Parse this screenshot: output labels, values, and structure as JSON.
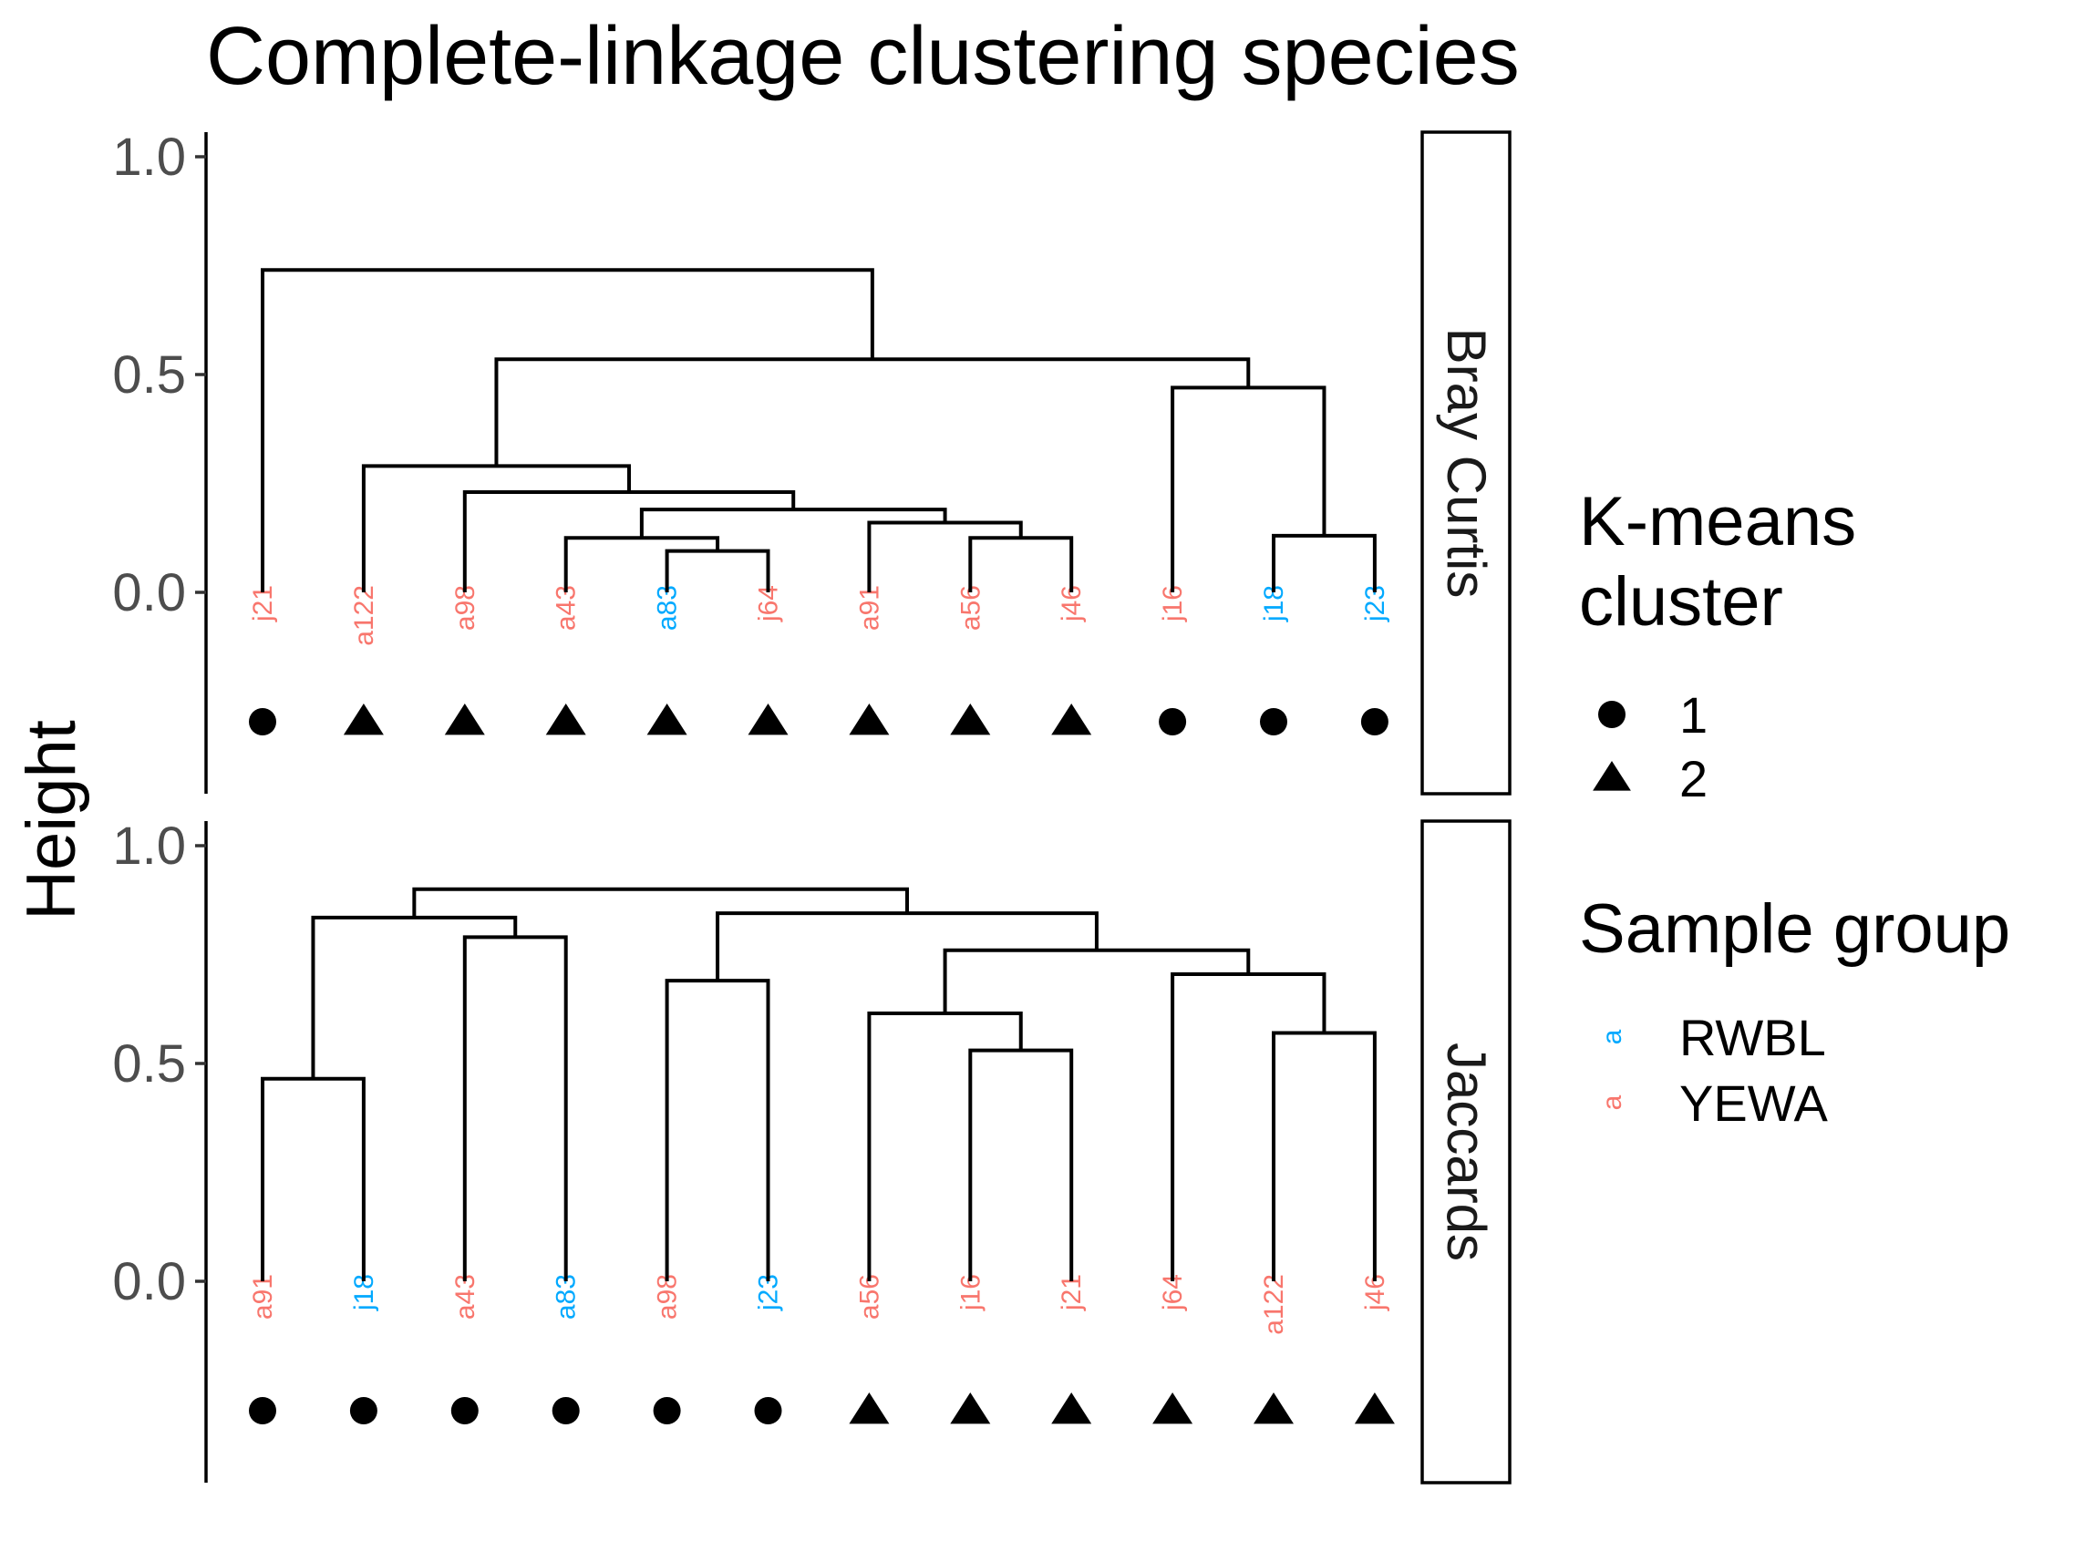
{
  "chart_data": {
    "type": "dendrogram",
    "title": "Complete-linkage clustering species",
    "ylabel": "Height",
    "ylim": [
      -0.3,
      1.05
    ],
    "yticks": [
      "0.0",
      "0.5",
      "1.0"
    ],
    "colors": {
      "RWBL": "#00A9FF",
      "YEWA": "#F8766D"
    },
    "legend": {
      "shape_title": "K-means\ncluster",
      "shape_items": [
        {
          "label": "1",
          "shape": "circle"
        },
        {
          "label": "2",
          "shape": "triangle"
        }
      ],
      "color_title": "Sample group",
      "color_items": [
        {
          "label": "RWBL",
          "group": "RWBL",
          "glyph": "a"
        },
        {
          "label": "YEWA",
          "group": "YEWA",
          "glyph": "a"
        }
      ]
    },
    "panels": [
      {
        "strip": "Bray Curtis",
        "leaves": [
          {
            "label": "j21",
            "group": "YEWA",
            "cluster": 1
          },
          {
            "label": "a122",
            "group": "YEWA",
            "cluster": 2
          },
          {
            "label": "a98",
            "group": "YEWA",
            "cluster": 2
          },
          {
            "label": "a43",
            "group": "YEWA",
            "cluster": 2
          },
          {
            "label": "a83",
            "group": "RWBL",
            "cluster": 2
          },
          {
            "label": "j64",
            "group": "YEWA",
            "cluster": 2
          },
          {
            "label": "a91",
            "group": "YEWA",
            "cluster": 2
          },
          {
            "label": "a56",
            "group": "YEWA",
            "cluster": 2
          },
          {
            "label": "j46",
            "group": "YEWA",
            "cluster": 2
          },
          {
            "label": "j16",
            "group": "YEWA",
            "cluster": 1
          },
          {
            "label": "j18",
            "group": "RWBL",
            "cluster": 1
          },
          {
            "label": "j23",
            "group": "RWBL",
            "cluster": 1
          }
        ],
        "merges": [
          [
            5,
            6,
            0.095
          ],
          [
            4,
            -1,
            0.125
          ],
          [
            8,
            9,
            0.125
          ],
          [
            11,
            12,
            0.13
          ],
          [
            7,
            -3,
            0.16
          ],
          [
            -2,
            -5,
            0.19
          ],
          [
            3,
            -6,
            0.23
          ],
          [
            2,
            -7,
            0.29
          ],
          [
            10,
            -4,
            0.47
          ],
          [
            -8,
            -9,
            0.535
          ],
          [
            1,
            -10,
            0.74
          ]
        ]
      },
      {
        "strip": "Jaccards",
        "leaves": [
          {
            "label": "a91",
            "group": "YEWA",
            "cluster": 1
          },
          {
            "label": "j18",
            "group": "RWBL",
            "cluster": 1
          },
          {
            "label": "a43",
            "group": "YEWA",
            "cluster": 1
          },
          {
            "label": "a83",
            "group": "RWBL",
            "cluster": 1
          },
          {
            "label": "a98",
            "group": "YEWA",
            "cluster": 1
          },
          {
            "label": "j23",
            "group": "RWBL",
            "cluster": 1
          },
          {
            "label": "a56",
            "group": "YEWA",
            "cluster": 2
          },
          {
            "label": "j16",
            "group": "YEWA",
            "cluster": 2
          },
          {
            "label": "j21",
            "group": "YEWA",
            "cluster": 2
          },
          {
            "label": "j64",
            "group": "YEWA",
            "cluster": 2
          },
          {
            "label": "a122",
            "group": "YEWA",
            "cluster": 2
          },
          {
            "label": "j46",
            "group": "YEWA",
            "cluster": 2
          }
        ],
        "merges": [
          [
            1,
            2,
            0.465
          ],
          [
            8,
            9,
            0.53
          ],
          [
            11,
            12,
            0.57
          ],
          [
            7,
            -2,
            0.615
          ],
          [
            5,
            6,
            0.69
          ],
          [
            10,
            -3,
            0.705
          ],
          [
            -4,
            -6,
            0.76
          ],
          [
            3,
            4,
            0.79
          ],
          [
            -1,
            -8,
            0.835
          ],
          [
            -5,
            -7,
            0.845
          ],
          [
            -9,
            -10,
            0.9
          ]
        ]
      }
    ]
  }
}
